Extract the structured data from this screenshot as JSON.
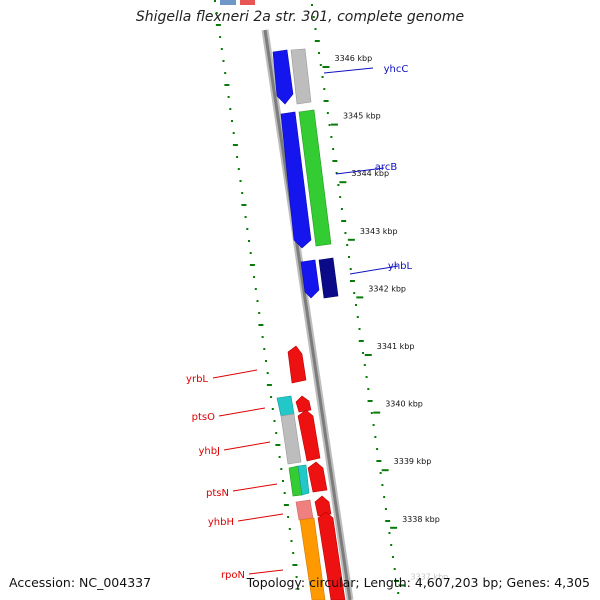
{
  "title": "Shigella flexneri 2a str. 301, complete genome",
  "accession_label": "Accession: NC_004337",
  "summary_label": "Topology: circular; Length: 4,607,203 bp; Genes: 4,305",
  "colors": {
    "forward_gene_label": "#1010c0",
    "reverse_gene_label": "#dd0000",
    "backbone": "#8a8a8a",
    "gc_dots": "#0a7a0a"
  },
  "ticks": [
    {
      "label": "3346 kbp"
    },
    {
      "label": "3345 kbp"
    },
    {
      "label": "3344 kbp"
    },
    {
      "label": "3343 kbp"
    },
    {
      "label": "3342 kbp"
    },
    {
      "label": "3341 kbp"
    },
    {
      "label": "3340 kbp"
    },
    {
      "label": "3339 kbp"
    },
    {
      "label": "3338 kbp"
    },
    {
      "label": "3337 kbp"
    }
  ],
  "gene_labels": [
    {
      "name": "yhcC",
      "strand": "forward"
    },
    {
      "name": "arcB",
      "strand": "forward"
    },
    {
      "name": "yhbL",
      "strand": "forward"
    },
    {
      "name": "yrbL",
      "strand": "reverse"
    },
    {
      "name": "ptsO",
      "strand": "reverse"
    },
    {
      "name": "yhbJ",
      "strand": "reverse"
    },
    {
      "name": "ptsN",
      "strand": "reverse"
    },
    {
      "name": "yhbH",
      "strand": "reverse"
    },
    {
      "name": "rpoN",
      "strand": "reverse"
    }
  ]
}
